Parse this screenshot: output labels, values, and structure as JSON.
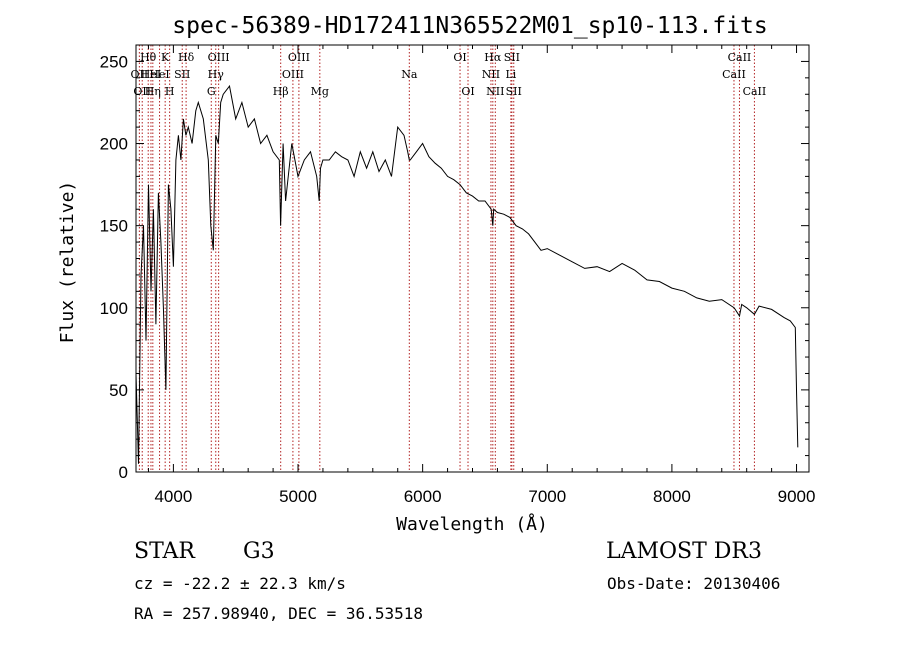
{
  "chart_data": {
    "type": "line",
    "title": "spec-56389-HD172411N365522M01_sp10-113.fits",
    "xlabel": "Wavelength (Å)",
    "ylabel": "Flux (relative)",
    "xlim": [
      3700,
      9100
    ],
    "ylim": [
      0,
      260
    ],
    "xticks": [
      4000,
      5000,
      6000,
      7000,
      8000,
      9000
    ],
    "yticks": [
      0,
      50,
      100,
      150,
      200,
      250
    ],
    "xtick_labels": [
      "4000",
      "5000",
      "6000",
      "7000",
      "8000",
      "9000"
    ],
    "ytick_labels": [
      "0",
      "50",
      "100",
      "150",
      "200",
      "250"
    ],
    "series": [
      {
        "name": "flux",
        "x": [
          3700,
          3720,
          3740,
          3760,
          3780,
          3800,
          3820,
          3840,
          3860,
          3880,
          3900,
          3920,
          3940,
          3960,
          3980,
          4000,
          4020,
          4040,
          4060,
          4080,
          4100,
          4120,
          4150,
          4180,
          4200,
          4240,
          4280,
          4300,
          4320,
          4340,
          4360,
          4380,
          4400,
          4450,
          4500,
          4550,
          4600,
          4650,
          4700,
          4750,
          4800,
          4850,
          4860,
          4880,
          4900,
          4950,
          5000,
          5050,
          5100,
          5150,
          5170,
          5180,
          5200,
          5250,
          5300,
          5350,
          5400,
          5450,
          5500,
          5550,
          5600,
          5650,
          5700,
          5750,
          5800,
          5850,
          5880,
          5893,
          5900,
          5950,
          6000,
          6050,
          6100,
          6150,
          6200,
          6250,
          6300,
          6350,
          6400,
          6450,
          6500,
          6550,
          6563,
          6570,
          6600,
          6650,
          6700,
          6750,
          6800,
          6850,
          6900,
          6950,
          7000,
          7100,
          7200,
          7300,
          7400,
          7500,
          7600,
          7700,
          7800,
          7900,
          8000,
          8100,
          8200,
          8300,
          8400,
          8500,
          8542,
          8560,
          8600,
          8662,
          8700,
          8800,
          8900,
          8950,
          8990,
          9000,
          9010
        ],
        "values": [
          60,
          5,
          120,
          150,
          80,
          175,
          110,
          160,
          90,
          170,
          140,
          100,
          50,
          175,
          160,
          125,
          190,
          205,
          190,
          215,
          205,
          210,
          200,
          220,
          225,
          215,
          190,
          150,
          135,
          205,
          200,
          225,
          230,
          235,
          215,
          225,
          210,
          215,
          200,
          205,
          195,
          190,
          150,
          200,
          165,
          200,
          180,
          190,
          195,
          180,
          165,
          185,
          190,
          190,
          195,
          192,
          190,
          180,
          195,
          185,
          195,
          183,
          190,
          180,
          210,
          205,
          195,
          190,
          190,
          195,
          200,
          192,
          188,
          185,
          180,
          178,
          175,
          170,
          168,
          165,
          165,
          160,
          150,
          160,
          158,
          157,
          155,
          150,
          148,
          145,
          140,
          135,
          136,
          132,
          128,
          124,
          125,
          122,
          127,
          123,
          117,
          116,
          112,
          110,
          106,
          104,
          105,
          100,
          95,
          102,
          100,
          96,
          101,
          99,
          94,
          92,
          88,
          50,
          15
        ]
      }
    ],
    "line_markers": [
      {
        "wavelength": 3727,
        "label": "OII",
        "row": 2
      },
      {
        "wavelength": 3750,
        "label": "OII",
        "row": 3
      },
      {
        "wavelength": 3798,
        "label": "Hθ",
        "row": 1
      },
      {
        "wavelength": 3820,
        "label": "HeI",
        "row": 2
      },
      {
        "wavelength": 3835,
        "label": "Hη",
        "row": 3
      },
      {
        "wavelength": 3889,
        "label": "HeI",
        "row": 2
      },
      {
        "wavelength": 3934,
        "label": "K",
        "row": 1
      },
      {
        "wavelength": 3970,
        "label": "H",
        "row": 3
      },
      {
        "wavelength": 4071,
        "label": "SII",
        "row": 2
      },
      {
        "wavelength": 4102,
        "label": "Hδ",
        "row": 1
      },
      {
        "wavelength": 4304,
        "label": "G",
        "row": 3
      },
      {
        "wavelength": 4340,
        "label": "Hγ",
        "row": 2
      },
      {
        "wavelength": 4363,
        "label": "OIII",
        "row": 1
      },
      {
        "wavelength": 4861,
        "label": "Hβ",
        "row": 3
      },
      {
        "wavelength": 4959,
        "label": "OIII",
        "row": 2
      },
      {
        "wavelength": 5007,
        "label": "OIII",
        "row": 1
      },
      {
        "wavelength": 5175,
        "label": "Mg",
        "row": 3
      },
      {
        "wavelength": 5893,
        "label": "Na",
        "row": 2
      },
      {
        "wavelength": 6300,
        "label": "OI",
        "row": 1
      },
      {
        "wavelength": 6364,
        "label": "OI",
        "row": 3
      },
      {
        "wavelength": 6548,
        "label": "NII",
        "row": 2
      },
      {
        "wavelength": 6563,
        "label": "Hα",
        "row": 1
      },
      {
        "wavelength": 6583,
        "label": "NII",
        "row": 3
      },
      {
        "wavelength": 6708,
        "label": "Li",
        "row": 2
      },
      {
        "wavelength": 6716,
        "label": "SII",
        "row": 1
      },
      {
        "wavelength": 6731,
        "label": "SII",
        "row": 3
      },
      {
        "wavelength": 8498,
        "label": "CaII",
        "row": 2
      },
      {
        "wavelength": 8542,
        "label": "CaII",
        "row": 1
      },
      {
        "wavelength": 8662,
        "label": "CaII",
        "row": 3
      }
    ],
    "colors": {
      "spectrum": "#000000",
      "markers": "#b22222",
      "axes": "#000000"
    }
  },
  "info": {
    "object_class": "STAR",
    "subclass": "G3",
    "survey": "LAMOST DR3",
    "redshift": "cz = -22.2 ± 22.3 km/s",
    "obs_date": "Obs-Date: 20130406",
    "coordinates": "RA = 257.98940, DEC =  36.53518"
  }
}
